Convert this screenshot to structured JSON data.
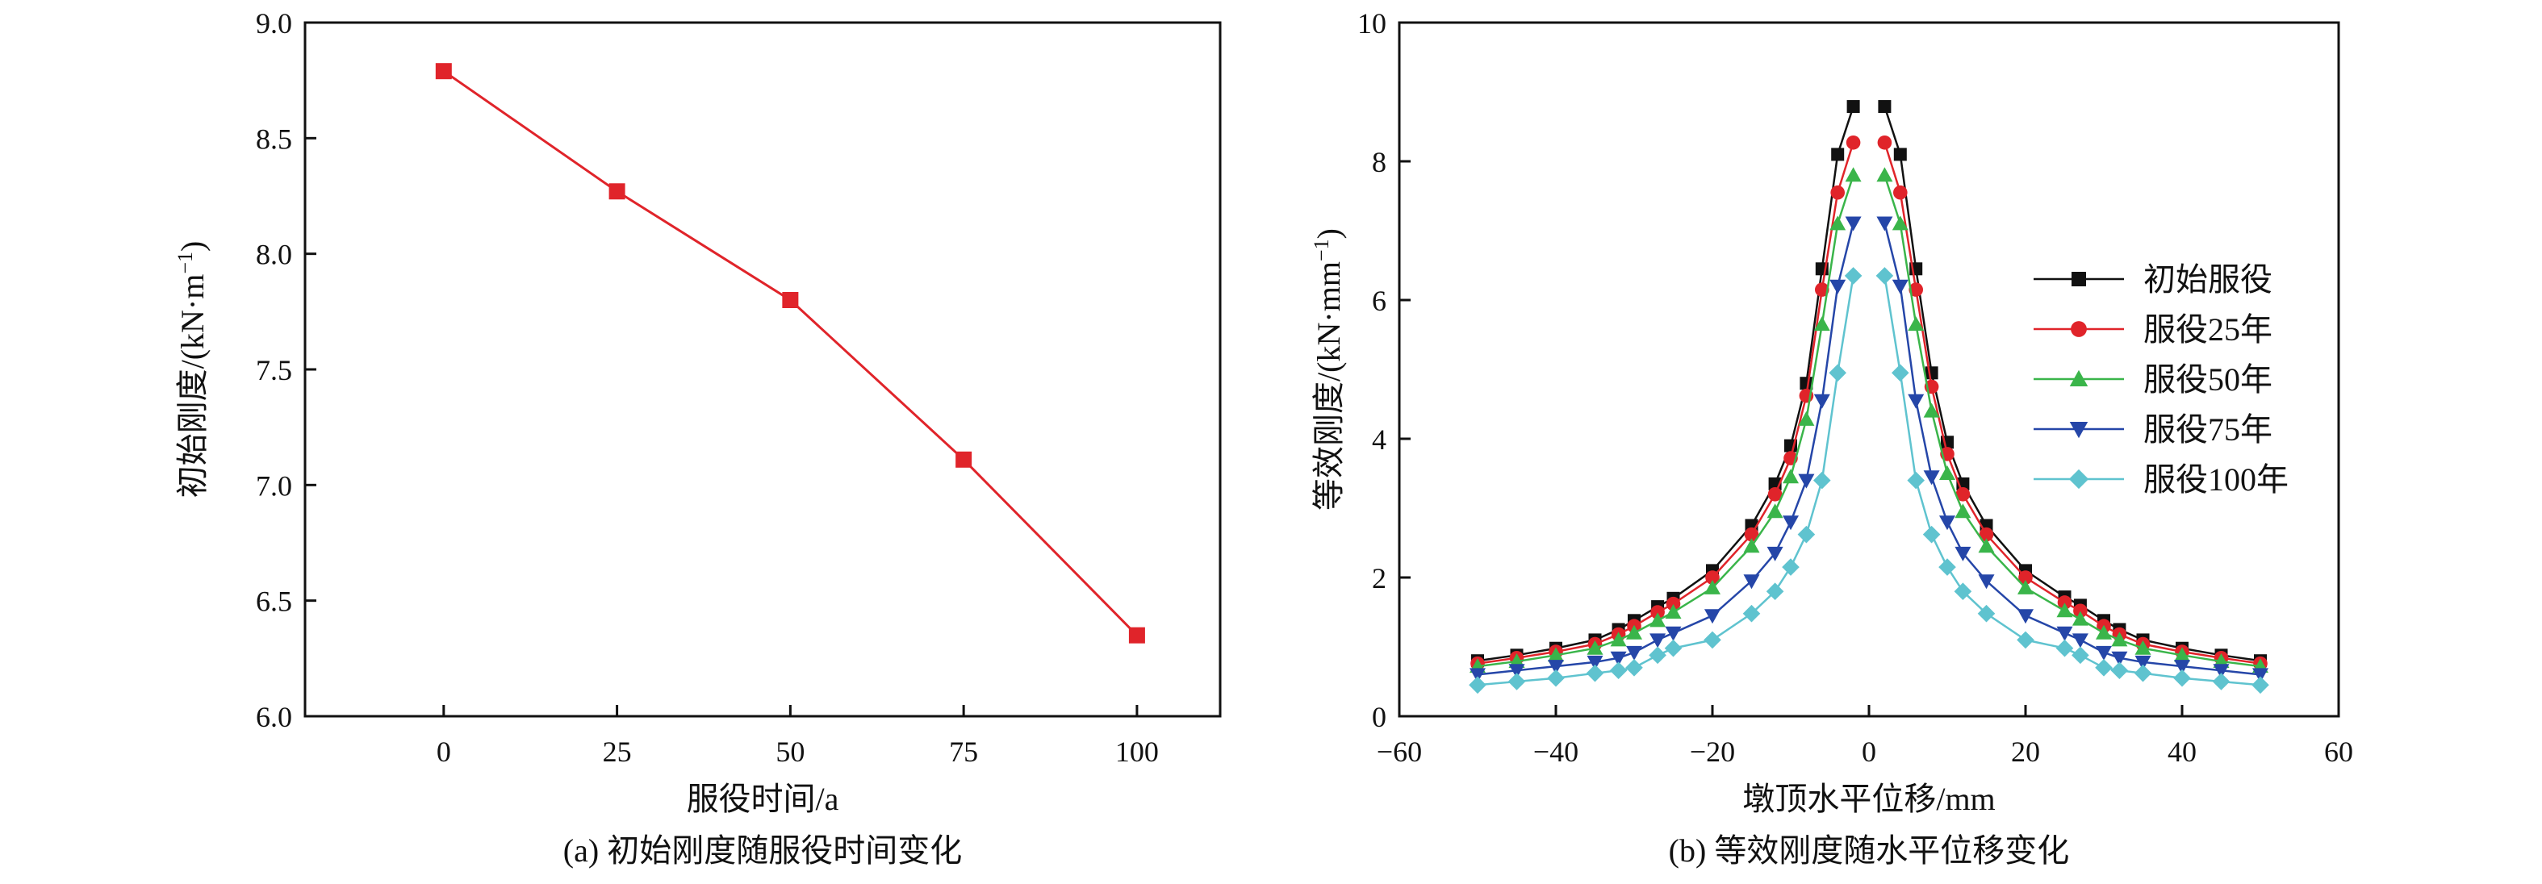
{
  "figure": {
    "caption_a": "(a) 初始刚度随服役时间变化",
    "caption_b": "(b) 等效刚度随水平位移变化"
  },
  "chart_data": [
    {
      "type": "line",
      "xlabel": "服役时间/a",
      "ylabel": "初始刚度/(kN·m",
      "ylabel_sup": "−1",
      "ylabel_close": ")",
      "xlim": [
        -20,
        112
      ],
      "ylim": [
        6.0,
        9.0
      ],
      "xticks": [
        0,
        25,
        50,
        75,
        100
      ],
      "xtick_labels": [
        "0",
        "25",
        "50",
        "75",
        "100"
      ],
      "yticks": [
        6.0,
        6.5,
        7.0,
        7.5,
        8.0,
        8.5,
        9.0
      ],
      "ytick_labels": [
        "6.0",
        "6.5",
        "7.0",
        "7.5",
        "8.0",
        "8.5",
        "9.0"
      ],
      "color": "#e0242a",
      "x": [
        0,
        25,
        50,
        75,
        100
      ],
      "y": [
        8.79,
        8.27,
        7.8,
        7.11,
        6.35
      ]
    },
    {
      "type": "line",
      "xlabel": "墩顶水平位移/mm",
      "ylabel": "等效刚度/(kN·mm",
      "ylabel_sup": "−1",
      "ylabel_close": ")",
      "xlim": [
        -60,
        60
      ],
      "ylim": [
        0,
        10
      ],
      "xticks": [
        -60,
        -40,
        -20,
        0,
        20,
        40,
        60
      ],
      "xtick_labels": [
        "−60",
        "−40",
        "−20",
        "0",
        "20",
        "40",
        "60"
      ],
      "yticks": [
        0,
        2,
        4,
        6,
        8,
        10
      ],
      "ytick_labels": [
        "0",
        "2",
        "4",
        "6",
        "8",
        "10"
      ],
      "x": [
        -50,
        -45,
        -40,
        -35,
        -32,
        -30,
        -27,
        -25,
        -20,
        -15,
        -12,
        -10,
        -8,
        -6,
        -4,
        -2,
        2,
        4,
        6,
        8,
        10,
        12,
        15,
        20,
        25,
        27,
        30,
        32,
        35,
        40,
        45,
        50
      ],
      "legend_position": "right",
      "series": [
        {
          "name": "初始服役",
          "color": "#111111",
          "marker": "square",
          "values": [
            0.8,
            0.88,
            0.98,
            1.1,
            1.25,
            1.38,
            1.58,
            1.7,
            2.1,
            2.75,
            3.35,
            3.9,
            4.8,
            6.45,
            8.1,
            8.79,
            8.79,
            8.1,
            6.45,
            4.95,
            3.95,
            3.35,
            2.75,
            2.1,
            1.72,
            1.6,
            1.38,
            1.25,
            1.1,
            0.98,
            0.88,
            0.8
          ]
        },
        {
          "name": "服役25年",
          "color": "#e0242a",
          "marker": "circle",
          "values": [
            0.76,
            0.84,
            0.93,
            1.04,
            1.18,
            1.3,
            1.5,
            1.62,
            2.0,
            2.62,
            3.2,
            3.72,
            4.62,
            6.15,
            7.55,
            8.27,
            8.27,
            7.55,
            6.15,
            4.75,
            3.78,
            3.2,
            2.62,
            2.0,
            1.64,
            1.52,
            1.3,
            1.18,
            1.04,
            0.93,
            0.84,
            0.76
          ]
        },
        {
          "name": "服役50年",
          "color": "#3ab54a",
          "marker": "triangle-up",
          "values": [
            0.72,
            0.79,
            0.88,
            0.98,
            1.1,
            1.2,
            1.38,
            1.5,
            1.85,
            2.45,
            2.95,
            3.45,
            4.28,
            5.65,
            7.1,
            7.8,
            7.8,
            7.1,
            5.65,
            4.4,
            3.5,
            2.95,
            2.45,
            1.85,
            1.52,
            1.4,
            1.2,
            1.1,
            0.98,
            0.88,
            0.79,
            0.72
          ]
        },
        {
          "name": "服役75年",
          "color": "#2546a8",
          "marker": "triangle-down",
          "values": [
            0.6,
            0.66,
            0.72,
            0.78,
            0.84,
            0.92,
            1.1,
            1.2,
            1.45,
            1.95,
            2.35,
            2.8,
            3.4,
            4.55,
            6.2,
            7.11,
            7.11,
            6.2,
            4.55,
            3.45,
            2.8,
            2.35,
            1.95,
            1.45,
            1.2,
            1.1,
            0.92,
            0.84,
            0.78,
            0.72,
            0.66,
            0.6
          ]
        },
        {
          "name": "服役100年",
          "color": "#5fc3cf",
          "marker": "diamond",
          "values": [
            0.45,
            0.5,
            0.55,
            0.62,
            0.66,
            0.7,
            0.88,
            0.98,
            1.1,
            1.48,
            1.8,
            2.15,
            2.62,
            3.4,
            4.95,
            6.35,
            6.35,
            4.95,
            3.4,
            2.62,
            2.15,
            1.8,
            1.48,
            1.1,
            0.98,
            0.88,
            0.7,
            0.66,
            0.62,
            0.55,
            0.5,
            0.45
          ]
        }
      ]
    }
  ]
}
